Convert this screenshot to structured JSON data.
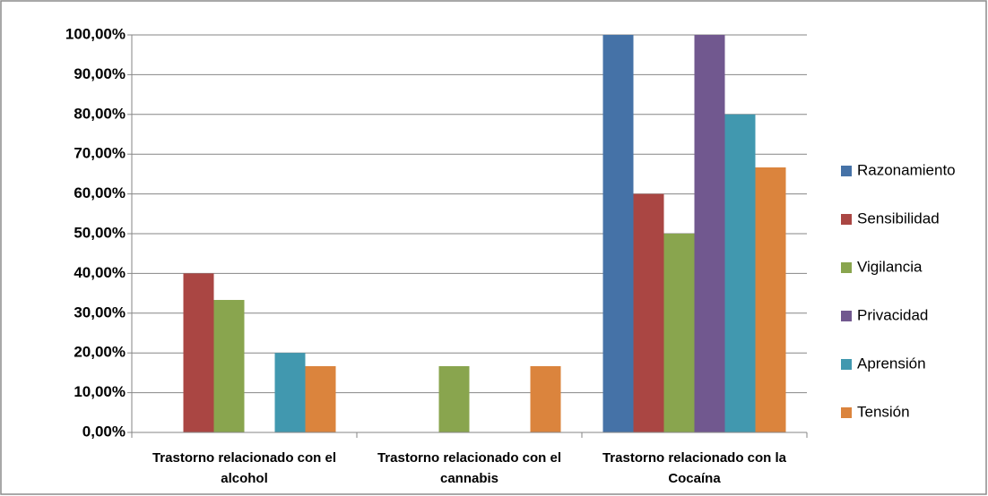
{
  "chart_data": {
    "type": "bar",
    "categories": [
      "Trastorno relacionado con el alcohol",
      "Trastorno relacionado con el cannabis",
      "Trastorno relacionado con la Cocaína"
    ],
    "series": [
      {
        "name": "Razonamiento",
        "color": "#4572a7",
        "values": [
          0,
          0,
          100
        ]
      },
      {
        "name": "Sensibilidad",
        "color": "#aa4643",
        "values": [
          40,
          0,
          60
        ]
      },
      {
        "name": "Vigilancia",
        "color": "#89a54e",
        "values": [
          33.33,
          16.67,
          50
        ]
      },
      {
        "name": "Privacidad",
        "color": "#71588f",
        "values": [
          0,
          0,
          100
        ]
      },
      {
        "name": "Aprensión",
        "color": "#4198af",
        "values": [
          20,
          0,
          80
        ]
      },
      {
        "name": "Tensión",
        "color": "#db843d",
        "values": [
          16.67,
          16.67,
          66.67
        ]
      }
    ],
    "ylim": [
      0,
      100
    ],
    "yticks": [
      {
        "value": 0,
        "label": "0,00%"
      },
      {
        "value": 10,
        "label": "10,00%"
      },
      {
        "value": 20,
        "label": "20,00%"
      },
      {
        "value": 30,
        "label": "30,00%"
      },
      {
        "value": 40,
        "label": "40,00%"
      },
      {
        "value": 50,
        "label": "50,00%"
      },
      {
        "value": 60,
        "label": "60,00%"
      },
      {
        "value": 70,
        "label": "70,00%"
      },
      {
        "value": 80,
        "label": "80,00%"
      },
      {
        "value": 90,
        "label": "90,00%"
      },
      {
        "value": 100,
        "label": "100,00%"
      }
    ],
    "grid": true,
    "legend": "right"
  }
}
